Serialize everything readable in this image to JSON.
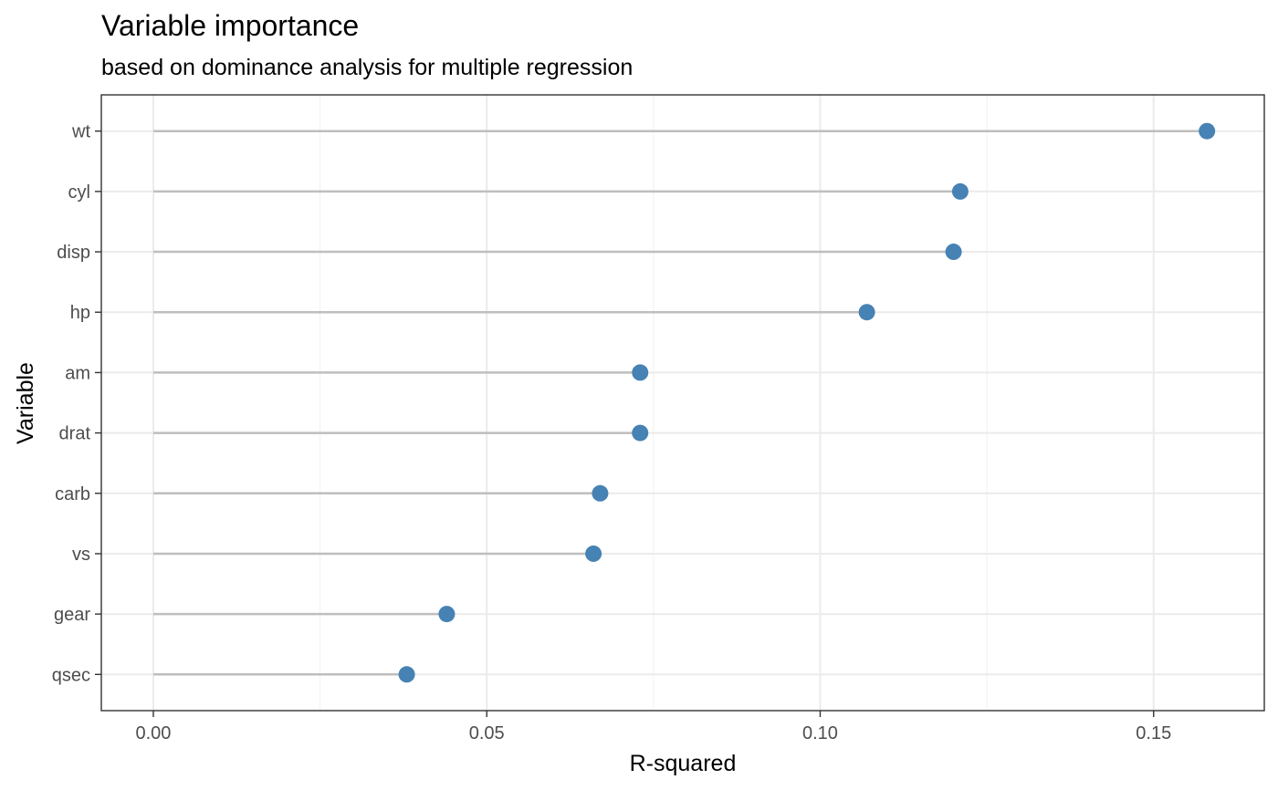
{
  "chart_data": {
    "type": "lollipop",
    "orientation": "horizontal",
    "title": "Variable importance",
    "subtitle": "based on dominance analysis for multiple regression",
    "xlabel": "R-squared",
    "ylabel": "Variable",
    "xlim": [
      -0.0078,
      0.1666
    ],
    "x_ticks": [
      0.0,
      0.05,
      0.1,
      0.15
    ],
    "x_tick_labels": [
      "0.00",
      "0.05",
      "0.10",
      "0.15"
    ],
    "categories": [
      "wt",
      "cyl",
      "disp",
      "hp",
      "am",
      "drat",
      "carb",
      "vs",
      "gear",
      "qsec"
    ],
    "values": [
      0.158,
      0.121,
      0.12,
      0.107,
      0.073,
      0.073,
      0.067,
      0.066,
      0.044,
      0.038
    ],
    "grid": true,
    "legend": "none",
    "colors": {
      "point": "#4682b4",
      "stem": "#bebebe",
      "grid_major": "#ebebeb",
      "grid_minor": "#f2f2f2",
      "panel_border": "#333333",
      "tick_text": "#4d4d4d",
      "tick_mark": "#333333"
    }
  }
}
